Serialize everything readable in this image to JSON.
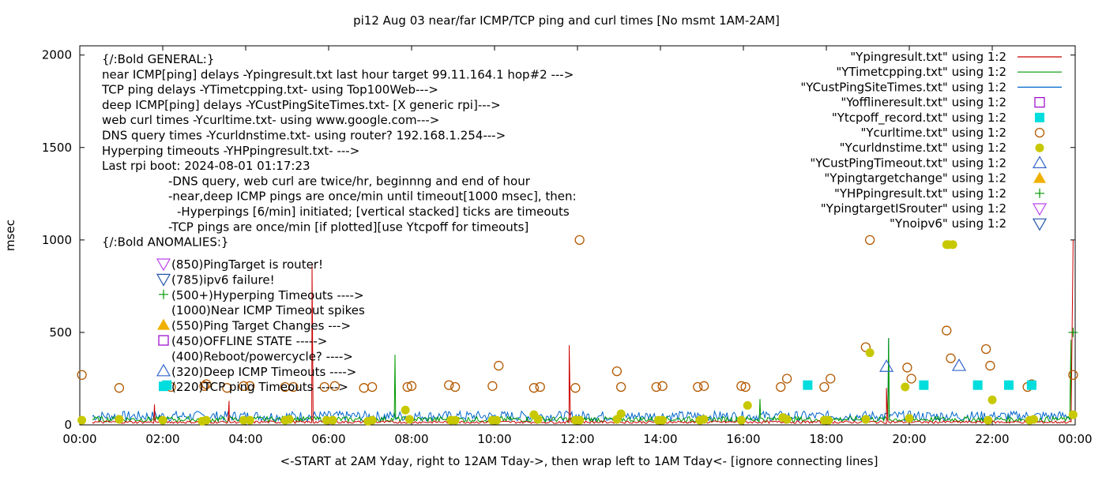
{
  "chart_data": {
    "type": "scatter",
    "title": "pi12 Aug 03  near/far ICMP/TCP ping and curl times [No msmt 1AM-2AM]",
    "xlabel": "<-START at 2AM Yday, right to 12AM Tday->, then wrap left to 1AM Tday<- [ignore connecting lines]",
    "ylabel": "msec",
    "xlim": [
      0,
      24
    ],
    "ylim": [
      0,
      2050
    ],
    "x_ticks": [
      "00:00",
      "02:00",
      "04:00",
      "06:00",
      "08:00",
      "10:00",
      "12:00",
      "14:00",
      "16:00",
      "18:00",
      "20:00",
      "22:00",
      "00:00"
    ],
    "y_ticks": [
      "0",
      "500",
      "1000",
      "1500",
      "2000"
    ],
    "grid": false,
    "legend_position": "top-right",
    "legend": [
      {
        "label": "\"Ypingresult.txt\" using 1:2",
        "color": "#cc0000",
        "marker": "line"
      },
      {
        "label": "\"YTimetcpping.txt\" using 1:2",
        "color": "#009900",
        "marker": "line"
      },
      {
        "label": "\"YCustPingSiteTimes.txt\" using 1:2",
        "color": "#0066cc",
        "marker": "line"
      },
      {
        "label": "\"Yofflineresult.txt\" using 1:2",
        "color": "#9900cc",
        "marker": "open-square"
      },
      {
        "label": "\"Ytcpoff_record.txt\" using 1:2",
        "color": "#00dddd",
        "marker": "filled-square"
      },
      {
        "label": "\"Ycurltime.txt\" using 1:2",
        "color": "#b35900",
        "marker": "open-circle"
      },
      {
        "label": "\"Ycurldnstime.txt\" using 1:2",
        "color": "#c8c800",
        "marker": "filled-circle"
      },
      {
        "label": "\"YCustPingTimeout.txt\" using 1:2",
        "color": "#3366cc",
        "marker": "open-triangle"
      },
      {
        "label": "\"Ypingtargetchange\" using 1:2",
        "color": "#f0b000",
        "marker": "filled-triangle"
      },
      {
        "label": "\"YHPpingresult.txt\" using 1:2",
        "color": "#009900",
        "marker": "plus"
      },
      {
        "label": "\"YpingtargetISrouter\" using 1:2",
        "color": "#bb44ee",
        "marker": "open-invtriangle"
      },
      {
        "label": "\"Ynoipv6\" using 1:2",
        "color": "#2255aa",
        "marker": "open-invtriangle"
      }
    ],
    "notes": [
      "{/:Bold GENERAL:}",
      "near ICMP[ping] delays -Ypingresult.txt last hour target 99.11.164.1 hop#2 --->",
      "TCP ping delays -YTimetcpping.txt- using Top100Web--->",
      "deep ICMP[ping] delays -YCustPingSiteTimes.txt- [X generic rpi]--->",
      "web curl times -Ycurltime.txt- using www.google.com--->",
      "DNS query times -Ycurldnstime.txt- using router? 192.168.1.254--->",
      "Hyperping timeouts -YHPpingresult.txt- --->",
      "Last rpi boot: 2024-08-01 01:17:23",
      "-DNS query, web curl are twice/hr, beginnng and end of hour",
      "-near,deep ICMP pings are once/min until timeout[1000 msec], then:",
      "-Hyperpings [6/min] initiated; [vertical stacked] ticks are timeouts",
      "-TCP pings are once/min [if plotted][use Ytcpoff for timeouts]",
      "{/:Bold ANOMALIES:}"
    ],
    "anomalies": [
      {
        "label": "(850)PingTarget is router!",
        "marker": "open-invtriangle",
        "color": "#bb44ee"
      },
      {
        "label": "(785)ipv6 failure!",
        "marker": "open-invtriangle",
        "color": "#2255aa"
      },
      {
        "label": "(500+)Hyperping Timeouts ---->",
        "marker": "plus",
        "color": "#009900"
      },
      {
        "label": "(1000)Near ICMP Timeout spikes",
        "marker": "none",
        "color": ""
      },
      {
        "label": "(550)Ping Target Changes --->",
        "marker": "filled-triangle",
        "color": "#f0b000"
      },
      {
        "label": "(450)OFFLINE STATE ----->",
        "marker": "open-square",
        "color": "#9900cc"
      },
      {
        "label": "(400)Reboot/powercycle? ---->",
        "marker": "none",
        "color": ""
      },
      {
        "label": "(320)Deep ICMP Timeouts ---->",
        "marker": "open-triangle",
        "color": "#3366cc"
      },
      {
        "label": "(220)TCP ping Timeouts ----->",
        "marker": "filled-square",
        "color": "#00dddd"
      }
    ],
    "curltime": [
      [
        0.05,
        270
      ],
      [
        0.95,
        200
      ],
      [
        2.2,
        205
      ],
      [
        3.0,
        210
      ],
      [
        3.05,
        220
      ],
      [
        3.55,
        200
      ],
      [
        3.95,
        210
      ],
      [
        4.1,
        210
      ],
      [
        4.95,
        205
      ],
      [
        5.15,
        205
      ],
      [
        5.9,
        205
      ],
      [
        6.15,
        210
      ],
      [
        6.85,
        200
      ],
      [
        7.05,
        205
      ],
      [
        7.9,
        205
      ],
      [
        8.0,
        210
      ],
      [
        8.9,
        215
      ],
      [
        9.05,
        205
      ],
      [
        9.95,
        210
      ],
      [
        10.1,
        320
      ],
      [
        10.95,
        200
      ],
      [
        11.1,
        205
      ],
      [
        11.95,
        200
      ],
      [
        12.05,
        1000
      ],
      [
        12.95,
        290
      ],
      [
        13.05,
        205
      ],
      [
        13.9,
        205
      ],
      [
        14.05,
        210
      ],
      [
        14.9,
        205
      ],
      [
        15.05,
        210
      ],
      [
        15.95,
        210
      ],
      [
        16.05,
        205
      ],
      [
        16.9,
        205
      ],
      [
        17.05,
        250
      ],
      [
        17.95,
        205
      ],
      [
        18.1,
        250
      ],
      [
        18.95,
        420
      ],
      [
        19.05,
        1000
      ],
      [
        19.95,
        310
      ],
      [
        20.05,
        250
      ],
      [
        20.9,
        510
      ],
      [
        21.0,
        360
      ],
      [
        21.85,
        410
      ],
      [
        21.95,
        320
      ],
      [
        22.85,
        205
      ],
      [
        22.95,
        220
      ],
      [
        23.95,
        270
      ]
    ],
    "curldnstime": [
      [
        0.05,
        25
      ],
      [
        0.95,
        30
      ],
      [
        2.0,
        25
      ],
      [
        2.95,
        20
      ],
      [
        3.05,
        25
      ],
      [
        3.95,
        25
      ],
      [
        4.1,
        25
      ],
      [
        4.95,
        25
      ],
      [
        5.05,
        30
      ],
      [
        5.95,
        25
      ],
      [
        6.1,
        25
      ],
      [
        6.95,
        20
      ],
      [
        7.05,
        25
      ],
      [
        7.85,
        80
      ],
      [
        7.95,
        30
      ],
      [
        8.95,
        25
      ],
      [
        9.05,
        25
      ],
      [
        9.95,
        25
      ],
      [
        10.05,
        25
      ],
      [
        10.95,
        55
      ],
      [
        11.05,
        30
      ],
      [
        11.95,
        25
      ],
      [
        12.05,
        25
      ],
      [
        12.95,
        30
      ],
      [
        13.05,
        60
      ],
      [
        13.95,
        25
      ],
      [
        14.05,
        25
      ],
      [
        14.95,
        25
      ],
      [
        15.05,
        30
      ],
      [
        15.95,
        25
      ],
      [
        16.1,
        105
      ],
      [
        16.95,
        40
      ],
      [
        17.05,
        30
      ],
      [
        17.95,
        25
      ],
      [
        18.05,
        25
      ],
      [
        18.95,
        30
      ],
      [
        19.05,
        390
      ],
      [
        19.9,
        205
      ],
      [
        20.0,
        35
      ],
      [
        20.9,
        975
      ],
      [
        20.95,
        975
      ],
      [
        21.05,
        975
      ],
      [
        21.9,
        25
      ],
      [
        22.0,
        135
      ],
      [
        22.9,
        25
      ],
      [
        23.0,
        30
      ],
      [
        23.95,
        55
      ]
    ],
    "tcpoff_record": [
      [
        2.1,
        215
      ],
      [
        17.55,
        215
      ],
      [
        20.35,
        215
      ],
      [
        21.65,
        215
      ],
      [
        22.4,
        215
      ],
      [
        22.95,
        215
      ]
    ],
    "custping_timeout": [
      [
        19.45,
        315
      ],
      [
        21.2,
        320
      ]
    ],
    "near_spikes": [
      [
        1.8,
        110
      ],
      [
        3.6,
        130
      ],
      [
        5.6,
        860
      ],
      [
        11.8,
        430
      ],
      [
        19.45,
        200
      ],
      [
        23.95,
        1000
      ]
    ],
    "tcp_spikes": [
      [
        7.6,
        380
      ],
      [
        16.4,
        140
      ],
      [
        19.5,
        470
      ],
      [
        23.9,
        460
      ]
    ],
    "hyperping": [
      [
        23.95,
        500
      ]
    ]
  }
}
